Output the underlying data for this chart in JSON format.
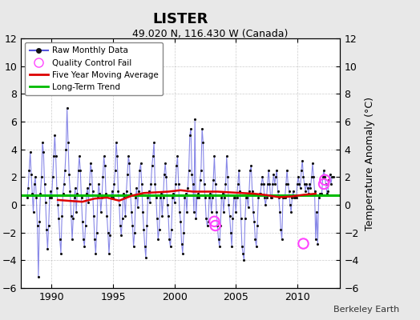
{
  "title": "LISTER",
  "subtitle": "49.020 N, 116.430 W (Canada)",
  "ylabel": "Temperature Anomaly (°C)",
  "credit": "Berkeley Earth",
  "ylim": [
    -6,
    12
  ],
  "yticks": [
    -6,
    -4,
    -2,
    0,
    2,
    4,
    6,
    8,
    10,
    12
  ],
  "xlim": [
    1987.5,
    2013.5
  ],
  "xticks": [
    1990,
    1995,
    2000,
    2005,
    2010
  ],
  "long_term_trend_y": 0.72,
  "background_color": "#e8e8e8",
  "plot_background": "#ffffff",
  "raw_color": "#5555dd",
  "raw_alpha": 0.7,
  "dot_color": "#111111",
  "dot_size": 5,
  "ma_color": "#dd0000",
  "ma_linewidth": 1.8,
  "trend_color": "#00bb00",
  "trend_linewidth": 2.2,
  "qc_color": "#ff44ff",
  "start_year": 1988.0,
  "raw_monthly": [
    0.5,
    1.2,
    2.5,
    3.8,
    2.2,
    0.8,
    -0.5,
    1.5,
    2.0,
    0.5,
    -1.5,
    -5.2,
    -1.2,
    0.8,
    2.0,
    4.5,
    3.8,
    1.5,
    0.2,
    -1.8,
    -3.2,
    -1.5,
    0.5,
    1.0,
    0.5,
    2.0,
    3.5,
    5.0,
    3.5,
    1.2,
    0.0,
    -1.0,
    -2.5,
    -3.5,
    -0.8,
    0.8,
    1.5,
    2.5,
    4.0,
    7.0,
    4.5,
    2.2,
    1.0,
    -0.8,
    -2.5,
    -1.0,
    0.5,
    1.2,
    -0.5,
    0.8,
    2.5,
    3.5,
    2.5,
    0.5,
    -1.2,
    -2.5,
    -3.0,
    -1.5,
    0.8,
    1.2,
    0.2,
    1.5,
    3.0,
    2.5,
    1.0,
    -0.8,
    -2.5,
    -3.5,
    -2.0,
    0.5,
    1.5,
    0.8,
    -0.5,
    0.5,
    2.0,
    3.5,
    2.8,
    0.8,
    -0.8,
    -2.0,
    -3.5,
    -2.2,
    0.5,
    1.0,
    0.5,
    1.5,
    2.5,
    4.5,
    3.5,
    1.0,
    0.0,
    -1.5,
    -2.2,
    -1.0,
    0.8,
    0.5,
    -0.8,
    1.0,
    2.2,
    3.5,
    3.0,
    0.8,
    -0.5,
    -1.5,
    -3.0,
    -2.0,
    0.5,
    1.2,
    -0.2,
    1.0,
    2.5,
    3.0,
    1.5,
    -0.5,
    -1.8,
    -3.0,
    -3.8,
    -1.5,
    0.5,
    1.0,
    0.2,
    1.5,
    2.8,
    3.5,
    4.5,
    1.5,
    0.5,
    -1.0,
    -2.5,
    -1.8,
    0.5,
    0.8,
    -0.8,
    0.5,
    2.2,
    3.0,
    2.0,
    0.0,
    -0.8,
    -2.5,
    -3.0,
    -1.8,
    0.5,
    0.8,
    0.2,
    1.5,
    2.8,
    3.5,
    1.5,
    -0.5,
    -1.2,
    -2.8,
    -3.5,
    -2.0,
    0.5,
    0.8,
    -0.5,
    1.2,
    2.5,
    5.0,
    5.5,
    2.2,
    1.5,
    -0.5,
    6.2,
    -1.0,
    0.5,
    0.8,
    0.5,
    1.8,
    2.5,
    5.5,
    4.5,
    1.5,
    0.5,
    -1.0,
    -1.5,
    -1.2,
    0.5,
    0.8,
    -0.5,
    0.5,
    1.8,
    3.5,
    1.5,
    -0.5,
    -1.5,
    -2.5,
    -3.0,
    -1.5,
    0.5,
    0.8,
    -0.5,
    0.5,
    1.5,
    3.5,
    2.0,
    0.0,
    -0.8,
    -2.0,
    -3.0,
    -1.0,
    0.5,
    0.5,
    -0.5,
    0.5,
    1.5,
    2.5,
    1.0,
    -1.0,
    -3.0,
    -3.5,
    -4.0,
    -1.0,
    0.5,
    0.5,
    -0.2,
    1.0,
    2.5,
    2.8,
    1.0,
    -0.5,
    -1.2,
    -2.5,
    -3.0,
    -1.5,
    0.5,
    0.8,
    0.8,
    1.5,
    2.0,
    1.5,
    0.5,
    0.0,
    0.5,
    1.5,
    2.5,
    1.5,
    0.5,
    0.5,
    1.5,
    2.2,
    1.5,
    2.0,
    2.5,
    1.0,
    0.5,
    -0.5,
    -1.8,
    -2.5,
    0.5,
    0.5,
    0.5,
    1.5,
    2.5,
    1.5,
    1.0,
    0.0,
    -0.5,
    0.5,
    1.0,
    0.5,
    0.5,
    0.5,
    1.5,
    2.0,
    1.5,
    1.2,
    2.5,
    3.2,
    2.0,
    1.5,
    1.0,
    1.5,
    1.2,
    0.8,
    1.5,
    1.2,
    2.0,
    3.0,
    2.0,
    1.0,
    -2.5,
    -0.5,
    -2.8,
    0.5,
    0.8,
    0.8,
    0.8,
    2.0,
    2.5,
    2.0,
    1.5,
    0.8,
    1.0,
    1.8,
    2.2,
    1.5,
    2.0,
    2.0
  ],
  "qc_fail_times": [
    2003.25,
    2003.33,
    2010.5,
    2012.17,
    2012.25
  ],
  "qc_fail_values": [
    -1.2,
    -1.5,
    -2.8,
    1.5,
    1.8
  ],
  "ma_times": [
    1990.5,
    1991.5,
    1992.5,
    1993.5,
    1994.5,
    1995.5,
    1996.5,
    1997.5,
    1998.5,
    1999.5,
    2000.5,
    2001.5,
    2002.5,
    2003.5,
    2004.5,
    2005.5,
    2006.5,
    2007.5,
    2008.5,
    2009.5,
    2010.5,
    2011.5
  ],
  "ma_values": [
    0.35,
    0.28,
    0.22,
    0.45,
    0.52,
    0.3,
    0.65,
    0.85,
    0.9,
    0.95,
    1.05,
    0.95,
    0.95,
    0.95,
    0.9,
    0.85,
    0.8,
    0.7,
    0.55,
    0.6,
    0.72,
    0.8
  ]
}
